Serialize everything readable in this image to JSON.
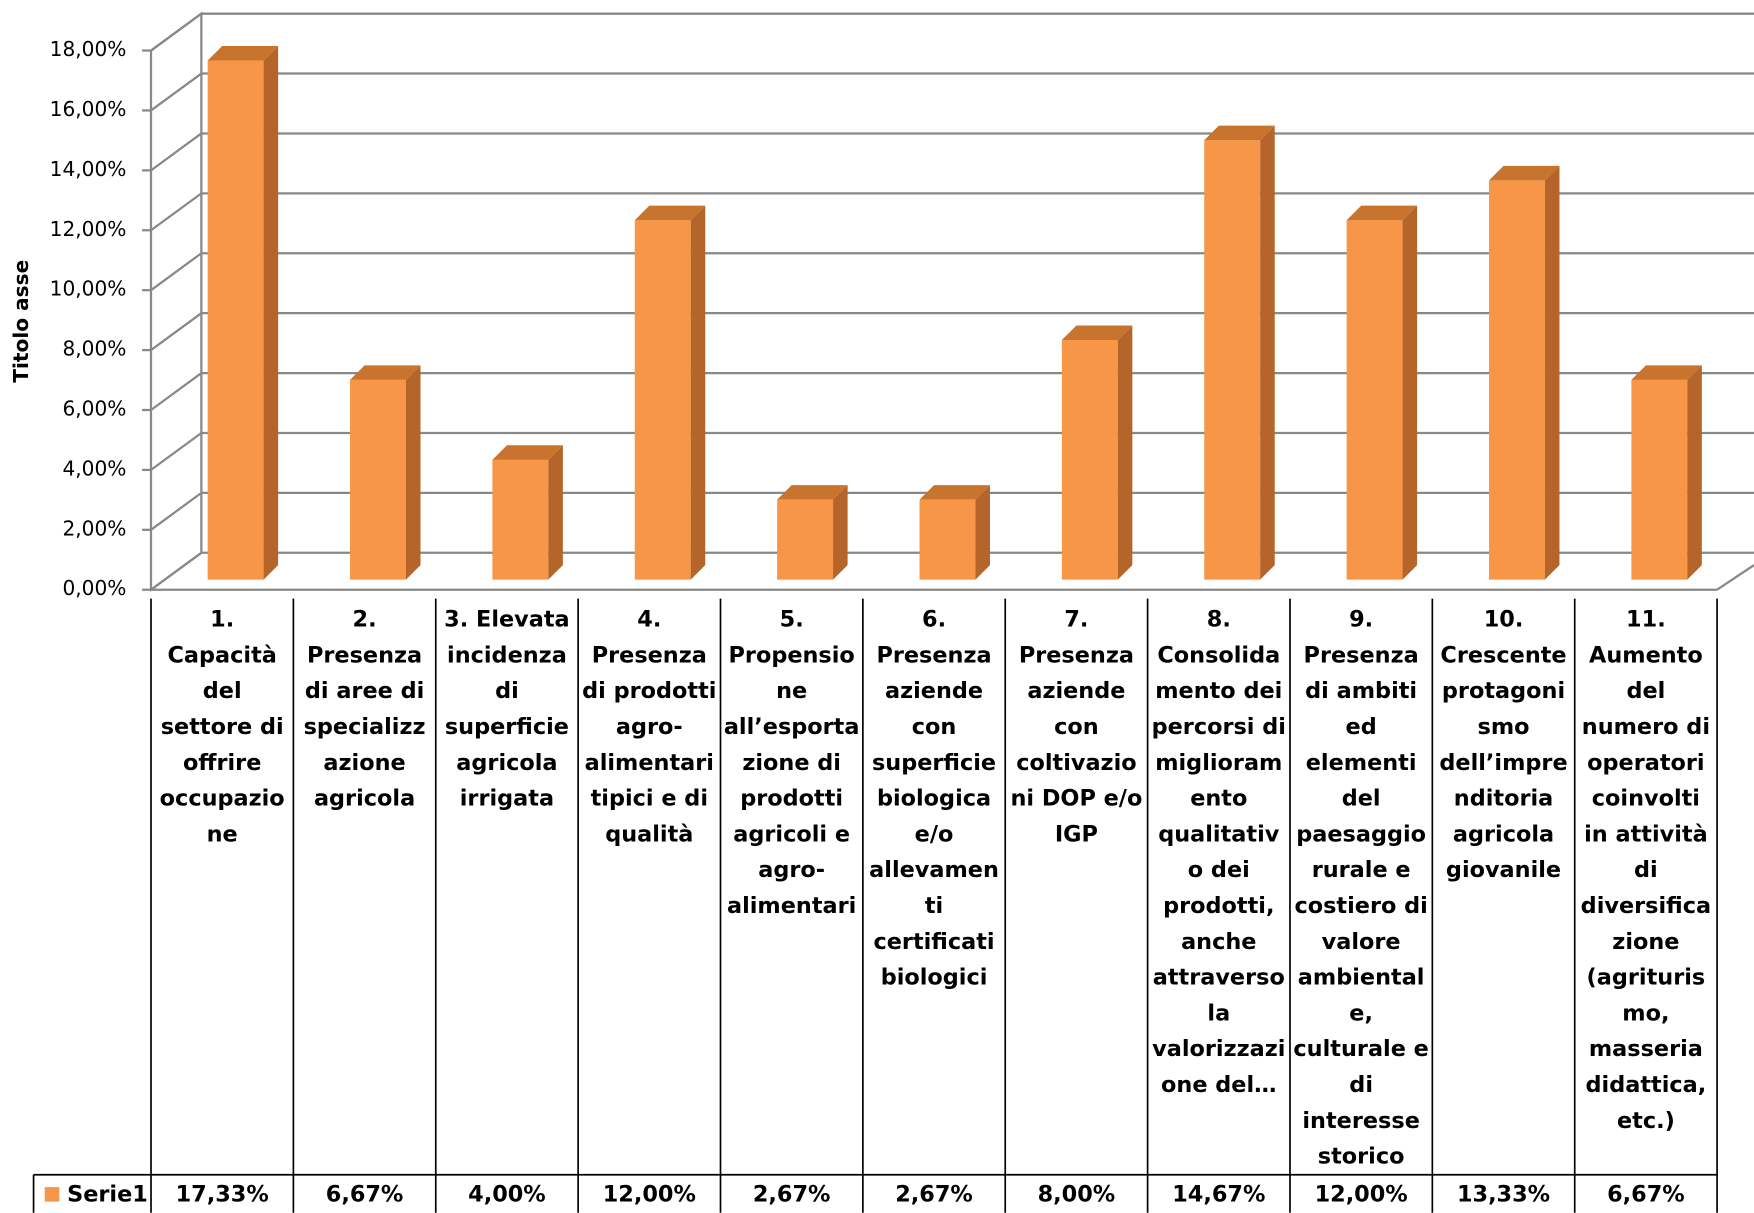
{
  "chart_data": {
    "type": "bar3d",
    "y_label": "Titolo asse",
    "categories": [
      "1. Capacità del settore di offrire occupazione",
      "2. Presenza di aree di specializzazione agricola",
      "3. Elevata incidenza di superficie agricola irrigata",
      "4. Presenza di prodotti agro-alimentari tipici e di qualità",
      "5. Propensione all’esportazione di prodotti agricoli e agro-alimentari",
      "6. Presenza aziende con superficie biologica e/o allevamenti certificati biologici",
      "7. Presenza aziende con coltivazioni DOP e/o IGP",
      "8. Consolidamento dei percorsi di miglioramento qualitativo dei prodotti, anche attraverso la valorizzazione del…",
      "9. Presenza di ambiti ed elementi del paesaggio rurale e costiero di valore ambientale, culturale e di interesse storico",
      "10. Crescente protagonismo dell’imprenditoria agricola giovanile",
      "11. Aumento del numero di operatori coinvolti in attività di diversificazione (agriturismo, masseria didattica, etc.)"
    ],
    "series": [
      {
        "name": "Serie1",
        "color": "#f79646",
        "values": [
          17.33,
          6.67,
          4.0,
          12.0,
          2.67,
          2.67,
          8.0,
          14.67,
          12.0,
          13.33,
          6.67
        ],
        "value_labels": [
          "17,33%",
          "6,67%",
          "4,00%",
          "12,00%",
          "2,67%",
          "2,67%",
          "8,00%",
          "14,67%",
          "12,00%",
          "13,33%",
          "6,67%"
        ]
      }
    ],
    "ylim": [
      0,
      18
    ],
    "yticks": [
      {
        "value": 0,
        "label": "0,00%"
      },
      {
        "value": 2,
        "label": "2,00%"
      },
      {
        "value": 4,
        "label": "4,00%"
      },
      {
        "value": 6,
        "label": "6,00%"
      },
      {
        "value": 8,
        "label": "8,00%"
      },
      {
        "value": 10,
        "label": "10,00%"
      },
      {
        "value": 12,
        "label": "12,00%"
      },
      {
        "value": 14,
        "label": "14,00%"
      },
      {
        "value": 16,
        "label": "16,00%"
      },
      {
        "value": 18,
        "label": "18,00%"
      }
    ],
    "grid": true
  }
}
